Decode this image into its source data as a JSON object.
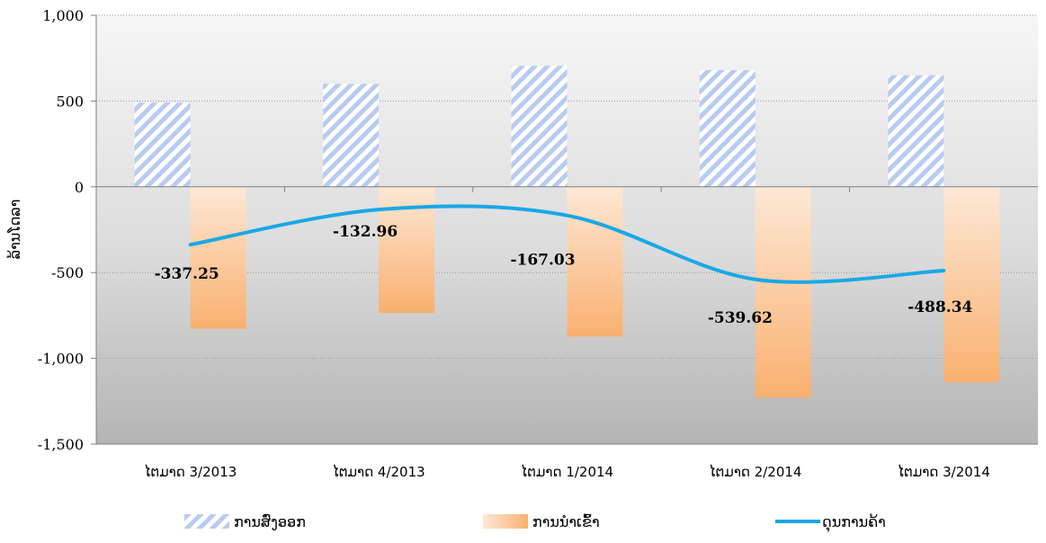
{
  "chart_data": {
    "type": "bar",
    "categories": [
      "ໄຕມາດ 3/2013",
      "ໄຕມາດ 4/2013",
      "ໄຕມາດ 1/2014",
      "ໄຕມາດ 2/2014",
      "ໄຕມາດ 3/2014"
    ],
    "series": [
      {
        "name": "ການສົ່ງອອກ",
        "type": "bar",
        "values": [
          490,
          600,
          705,
          680,
          650
        ],
        "color": "#b8cbf0"
      },
      {
        "name": "ການນຳເຂົ້າ",
        "type": "bar",
        "values": [
          -828,
          -735,
          -873,
          -1230,
          -1140
        ],
        "color": "#f9b477"
      },
      {
        "name": "ດຸນການຄ້າ",
        "type": "line",
        "values": [
          -337.25,
          -132.96,
          -167.03,
          -539.62,
          -488.34
        ],
        "color": "#1aa7e6"
      }
    ],
    "data_labels": [
      "-337.25",
      "-132.96",
      "-167.03",
      "-539.62",
      "-488.34"
    ],
    "title": "",
    "xlabel": "",
    "ylabel": "ລ້ານໂດລາ",
    "ylim": [
      -1500,
      1000
    ],
    "yticks": [
      1000,
      500,
      0,
      -500,
      -1000,
      -1500
    ],
    "ytick_labels": [
      "1,000",
      "500",
      "0",
      "-500",
      "-1,000",
      "-1,500"
    ],
    "grid": true,
    "legend_position": "bottom"
  }
}
